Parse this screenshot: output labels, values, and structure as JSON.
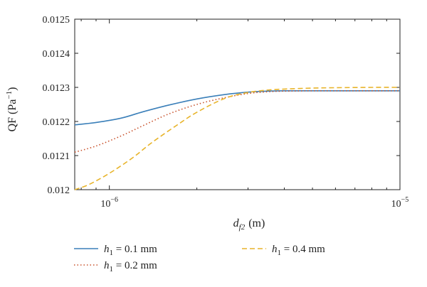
{
  "chart_data": {
    "type": "line",
    "title": "",
    "xlabel": {
      "main": "d",
      "sub": "f2",
      "unit": "(m)"
    },
    "ylabel": {
      "main": "QF (Pa",
      "sup": "−1",
      "close": ")"
    },
    "xscale": "log",
    "xlim": [
      7.6e-07,
      1e-05
    ],
    "ylim": [
      0.012,
      0.0125
    ],
    "x_ticks": [
      {
        "value": 1e-06,
        "base": "10",
        "exp": "−6"
      },
      {
        "value": 1e-05,
        "base": "10",
        "exp": "−5"
      }
    ],
    "y_ticks": [
      {
        "value": 0.012,
        "label": "0.012"
      },
      {
        "value": 0.0121,
        "label": "0.0121"
      },
      {
        "value": 0.0122,
        "label": "0.0122"
      },
      {
        "value": 0.0123,
        "label": "0.0123"
      },
      {
        "value": 0.0124,
        "label": "0.0124"
      },
      {
        "value": 0.0125,
        "label": "0.0125"
      }
    ],
    "grid": false,
    "legend_position": "bottom",
    "series": [
      {
        "name": "h1 = 0.1 mm",
        "legend": {
          "var": "h",
          "sub": "1",
          "rest": " = 0.1 mm"
        },
        "color": "#3a7fb9",
        "dash": "solid",
        "x": [
          7.6e-07,
          9e-07,
          1.1e-06,
          1.3e-06,
          1.6e-06,
          2e-06,
          2.5e-06,
          3e-06,
          3.5e-06,
          4e-06,
          5e-06,
          7e-06,
          1e-05
        ],
        "y": [
          0.01219,
          0.012197,
          0.01221,
          0.012228,
          0.012248,
          0.012266,
          0.012279,
          0.012286,
          0.012289,
          0.01229,
          0.01229,
          0.01229,
          0.01229
        ]
      },
      {
        "name": "h1 = 0.2 mm",
        "legend": {
          "var": "h",
          "sub": "1",
          "rest": " = 0.2 mm"
        },
        "color": "#c8522c",
        "dash": "dotted",
        "x": [
          7.6e-07,
          9e-07,
          1.1e-06,
          1.3e-06,
          1.6e-06,
          2e-06,
          2.5e-06,
          3e-06,
          3.5e-06,
          4e-06,
          5e-06,
          7e-06,
          1e-05
        ],
        "y": [
          0.01211,
          0.012128,
          0.012158,
          0.012187,
          0.012222,
          0.01225,
          0.01227,
          0.012282,
          0.012287,
          0.012289,
          0.01229,
          0.01229,
          0.01229
        ]
      },
      {
        "name": "h1 = 0.4 mm",
        "legend": {
          "var": "h",
          "sub": "1",
          "rest": " = 0.4 mm"
        },
        "color": "#e8b42a",
        "dash": "dashed",
        "x": [
          7.6e-07,
          8.5e-07,
          1e-06,
          1.2e-06,
          1.4e-06,
          1.7e-06,
          2e-06,
          2.5e-06,
          3e-06,
          3.5e-06,
          4e-06,
          5e-06,
          6e-06,
          8e-06,
          1e-05
        ],
        "y": [
          0.012,
          0.012015,
          0.012048,
          0.012093,
          0.012138,
          0.012188,
          0.012227,
          0.012268,
          0.012285,
          0.012292,
          0.012295,
          0.012298,
          0.012299,
          0.0123,
          0.0123
        ]
      }
    ]
  }
}
